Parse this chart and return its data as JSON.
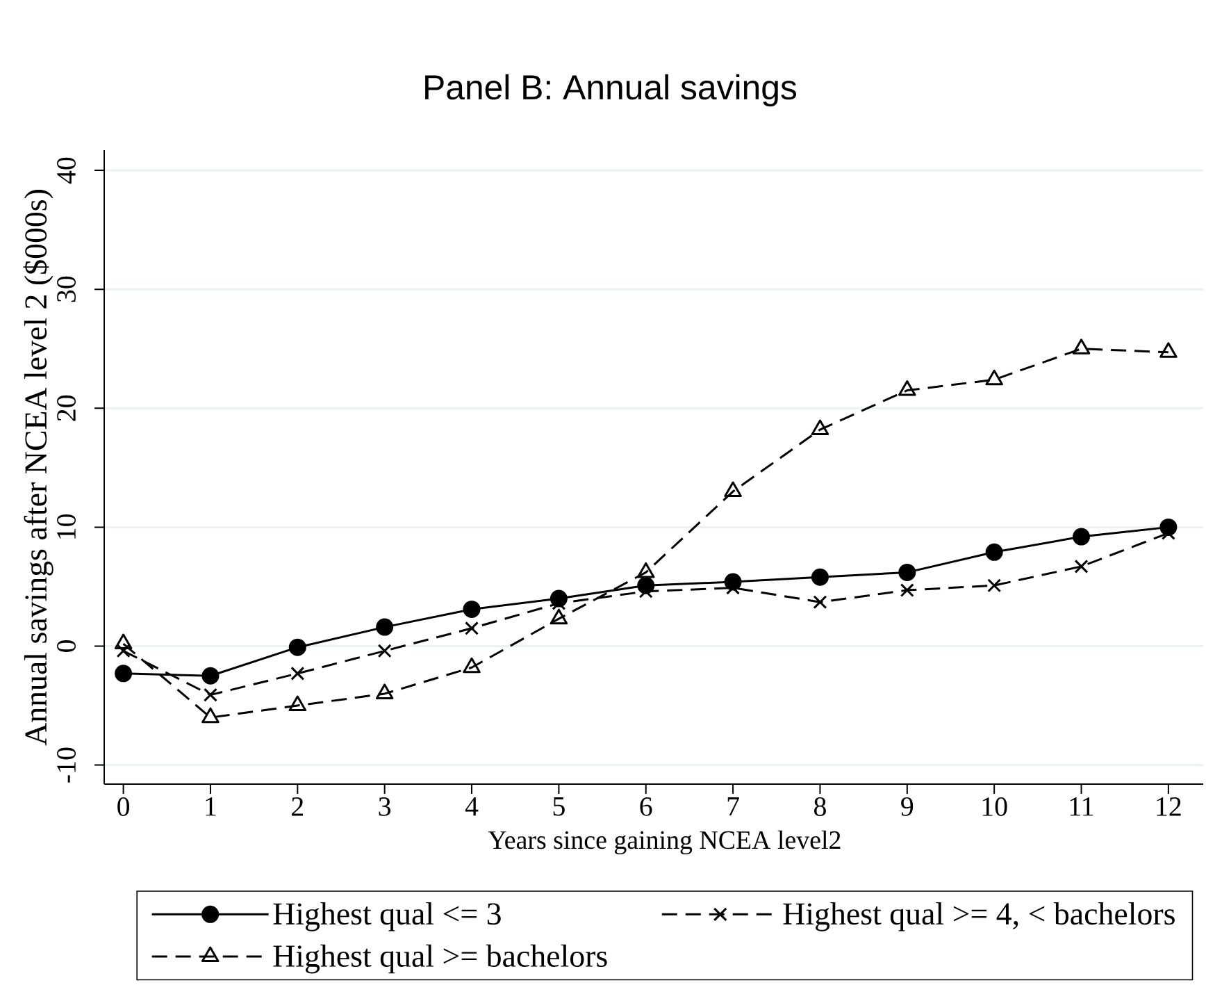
{
  "chart_data": {
    "type": "line",
    "title": "Panel B: Annual savings",
    "xlabel": "Years since gaining NCEA level2",
    "ylabel": "Annual savings after NCEA level 2 ($000s)",
    "x": [
      0,
      1,
      2,
      3,
      4,
      5,
      6,
      7,
      8,
      9,
      10,
      11,
      12
    ],
    "series": [
      {
        "name": "Highest qual <= 3",
        "color": "#000000",
        "marker": "circle",
        "line_style": "solid",
        "values": [
          -2.3,
          -2.5,
          -0.1,
          1.6,
          3.1,
          4.0,
          5.1,
          5.4,
          5.8,
          6.2,
          7.9,
          9.2,
          10.0
        ]
      },
      {
        "name": "Highest qual >= 4, < bachelors",
        "color": "#000000",
        "marker": "cross",
        "line_style": "dashed",
        "values": [
          -0.4,
          -4.1,
          -2.3,
          -0.4,
          1.5,
          3.6,
          4.6,
          4.9,
          3.7,
          4.7,
          5.1,
          6.7,
          9.5
        ]
      },
      {
        "name": "Highest qual >= bachelors",
        "color": "#000000",
        "marker": "triangle",
        "line_style": "dashed",
        "values": [
          0.2,
          -6.0,
          -5.0,
          -4.0,
          -1.8,
          2.3,
          6.2,
          13.0,
          18.2,
          21.5,
          22.4,
          25.0,
          24.7
        ]
      }
    ],
    "xlim": [
      -0.22,
      12.4
    ],
    "ylim": [
      -11.6,
      41.7
    ],
    "xticks": [
      0,
      1,
      2,
      3,
      4,
      5,
      6,
      7,
      8,
      9,
      10,
      11,
      12
    ],
    "yticks": [
      -10,
      0,
      10,
      20,
      30,
      40
    ],
    "grid": "y",
    "legend": "bottom"
  }
}
